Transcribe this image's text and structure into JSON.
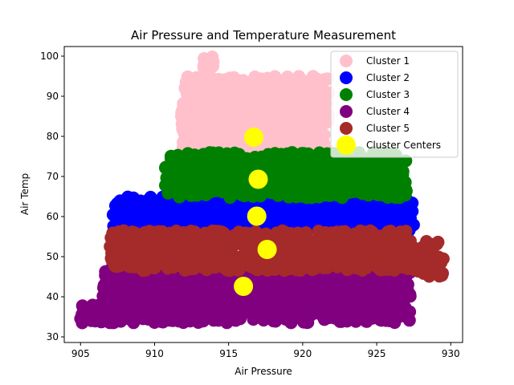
{
  "chart_data": {
    "type": "scatter",
    "title": "Air Pressure and Temperature Measurement",
    "xlabel": "Air Pressure",
    "ylabel": "Air Temp",
    "xlim": [
      903.9,
      930.8
    ],
    "ylim": [
      28.6,
      102.4
    ],
    "xticks": [
      905,
      910,
      915,
      920,
      925,
      930
    ],
    "yticks": [
      30,
      40,
      50,
      60,
      70,
      80,
      90,
      100
    ],
    "grid": false,
    "legend_position": "upper right",
    "series": [
      {
        "name": "Cluster 1",
        "color": "#ffc0cb",
        "regions": [
          {
            "x_range": [
              911.8,
              921.8
            ],
            "y_range": [
              76,
              95
            ]
          },
          {
            "x_range": [
              913.3,
              914.0
            ],
            "y_range": [
              89,
              100
            ]
          }
        ]
      },
      {
        "name": "Cluster 2",
        "color": "#0000ff",
        "regions": [
          {
            "x_range": [
              907.2,
              927.5
            ],
            "y_range": [
              56.5,
              65
            ]
          }
        ]
      },
      {
        "name": "Cluster 3",
        "color": "#008000",
        "regions": [
          {
            "x_range": [
              910.7,
              927.0
            ],
            "y_range": [
              64.7,
              76
            ]
          }
        ]
      },
      {
        "name": "Cluster 4",
        "color": "#800080",
        "regions": [
          {
            "x_range": [
              906.5,
              927.3
            ],
            "y_range": [
              33.5,
              47
            ]
          },
          {
            "x_range": [
              905.0,
              906.5
            ],
            "y_range": [
              33.5,
              38
            ]
          }
        ]
      },
      {
        "name": "Cluster 5",
        "color": "#a52a2a",
        "regions": [
          {
            "x_range": [
              907.0,
              927.5
            ],
            "y_range": [
              46.5,
              56.5
            ]
          },
          {
            "x_range": [
              927.5,
              929.5
            ],
            "y_range": [
              45,
              54
            ]
          }
        ]
      }
    ],
    "centers": {
      "name": "Cluster Centers",
      "color": "#ffff00",
      "points": [
        {
          "x": 916.7,
          "y": 79.8
        },
        {
          "x": 917.0,
          "y": 69.3
        },
        {
          "x": 916.9,
          "y": 60.1
        },
        {
          "x": 917.6,
          "y": 51.8
        },
        {
          "x": 916.0,
          "y": 42.6
        }
      ]
    }
  }
}
